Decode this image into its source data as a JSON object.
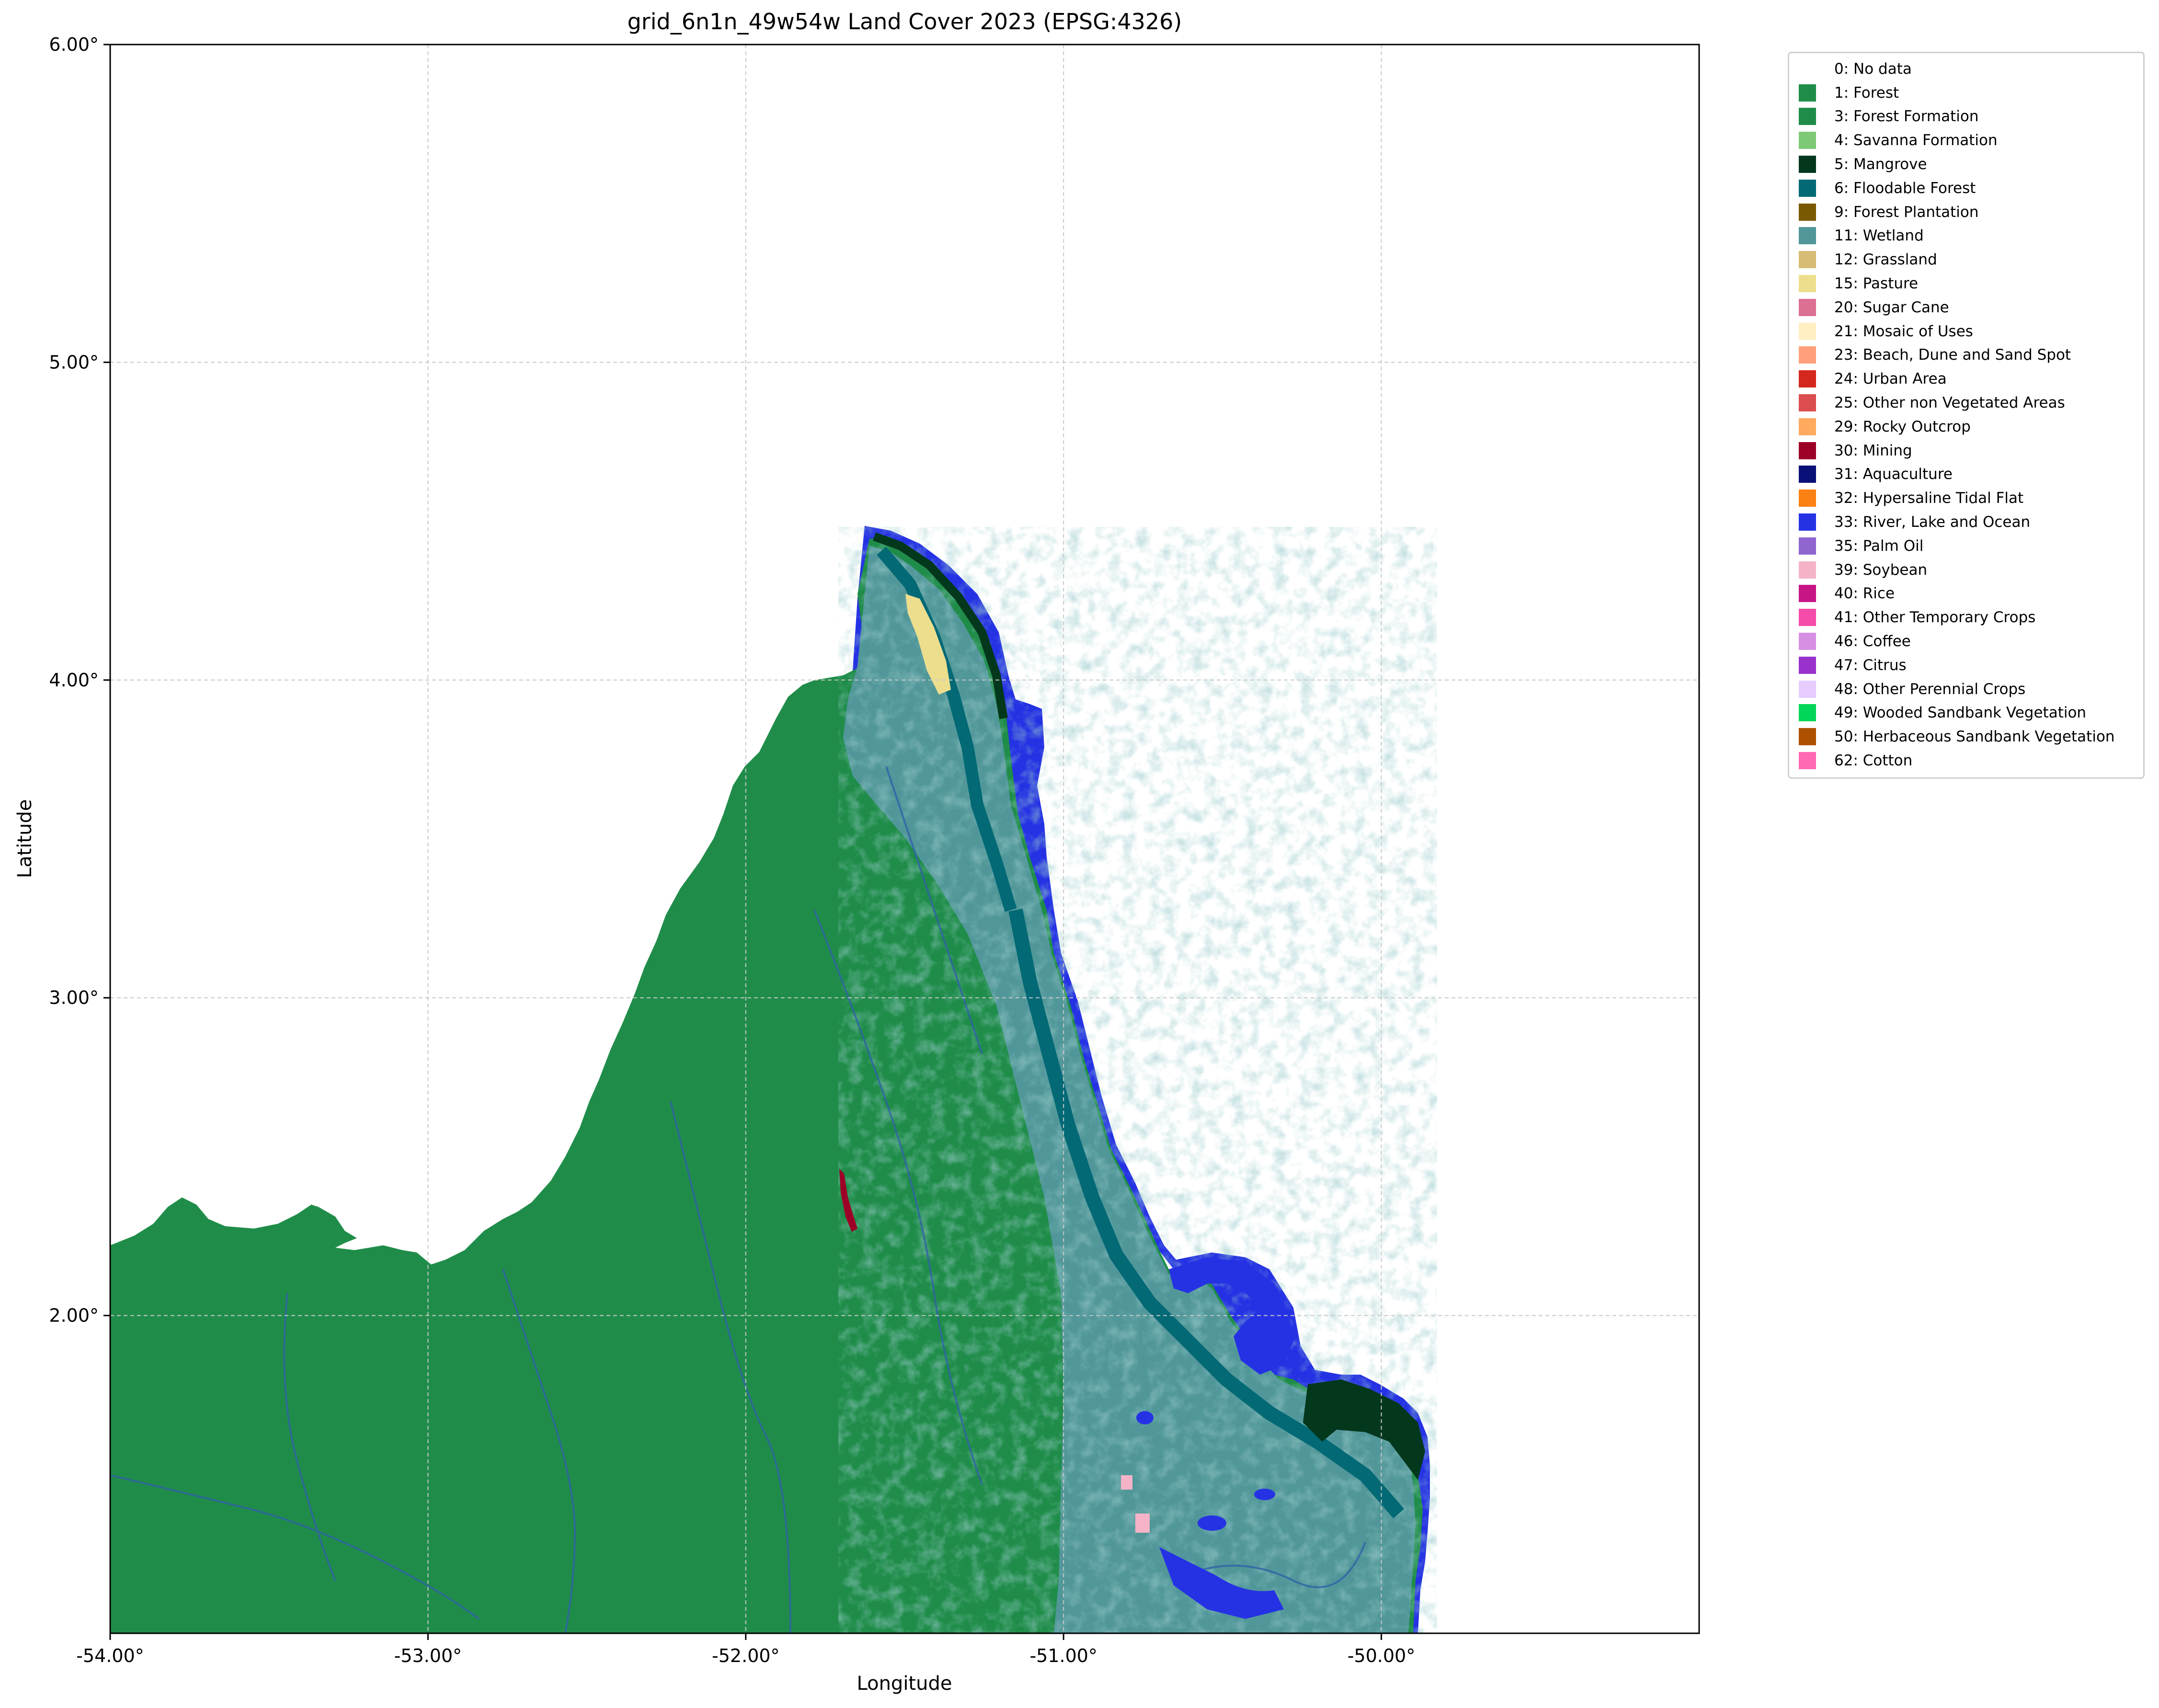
{
  "map": {
    "title": "grid_6n1n_49w54w Land Cover 2023 (EPSG:4326)",
    "xlabel": "Longitude",
    "ylabel": "Latitude",
    "x_ticks": [
      "-54.00°",
      "-53.00°",
      "-52.00°",
      "-51.00°",
      "-50.00°"
    ],
    "y_ticks": [
      "6.00°",
      "5.00°",
      "4.00°",
      "3.00°",
      "2.00°"
    ],
    "xlim": [
      -54.0,
      -49.0
    ],
    "ylim": [
      1.0,
      6.0
    ],
    "grid": true,
    "legend_placement": "outside-right",
    "legend": [
      {
        "label": "0: No data",
        "color": "#ffffff"
      },
      {
        "label": "1: Forest",
        "color": "#1f8d49"
      },
      {
        "label": "3: Forest Formation",
        "color": "#1f8d49"
      },
      {
        "label": "4: Savanna Formation",
        "color": "#7dc975"
      },
      {
        "label": "5: Mangrove",
        "color": "#04381d"
      },
      {
        "label": "6: Floodable Forest",
        "color": "#026975"
      },
      {
        "label": "9: Forest Plantation",
        "color": "#7a5900"
      },
      {
        "label": "11: Wetland",
        "color": "#519799"
      },
      {
        "label": "12: Grassland",
        "color": "#d6bc74"
      },
      {
        "label": "15: Pasture",
        "color": "#edde8e"
      },
      {
        "label": "20: Sugar Cane",
        "color": "#db7093"
      },
      {
        "label": "21: Mosaic of Uses",
        "color": "#ffefc3"
      },
      {
        "label": "23: Beach, Dune and Sand Spot",
        "color": "#ffa07a"
      },
      {
        "label": "24: Urban Area",
        "color": "#d4271e"
      },
      {
        "label": "25: Other non Vegetated Areas",
        "color": "#db4d4f"
      },
      {
        "label": "29: Rocky Outcrop",
        "color": "#ffaa5f"
      },
      {
        "label": "30: Mining",
        "color": "#9c0027"
      },
      {
        "label": "31: Aquaculture",
        "color": "#091077"
      },
      {
        "label": "32: Hypersaline Tidal Flat",
        "color": "#fc8114"
      },
      {
        "label": "33: River, Lake and Ocean",
        "color": "#2532e4"
      },
      {
        "label": "35: Palm Oil",
        "color": "#9065d0"
      },
      {
        "label": "39: Soybean",
        "color": "#f5b3c8"
      },
      {
        "label": "40: Rice",
        "color": "#c71585"
      },
      {
        "label": "41: Other Temporary Crops",
        "color": "#f54ca9"
      },
      {
        "label": "46: Coffee",
        "color": "#d68fe2"
      },
      {
        "label": "47: Citrus",
        "color": "#9932cc"
      },
      {
        "label": "48: Other Perennial Crops",
        "color": "#e6ccff"
      },
      {
        "label": "49: Wooded Sandbank Vegetation",
        "color": "#02d659"
      },
      {
        "label": "50: Herbaceous Sandbank Vegetation",
        "color": "#ad5100"
      },
      {
        "label": "62: Cotton",
        "color": "#ff69b4"
      }
    ]
  }
}
